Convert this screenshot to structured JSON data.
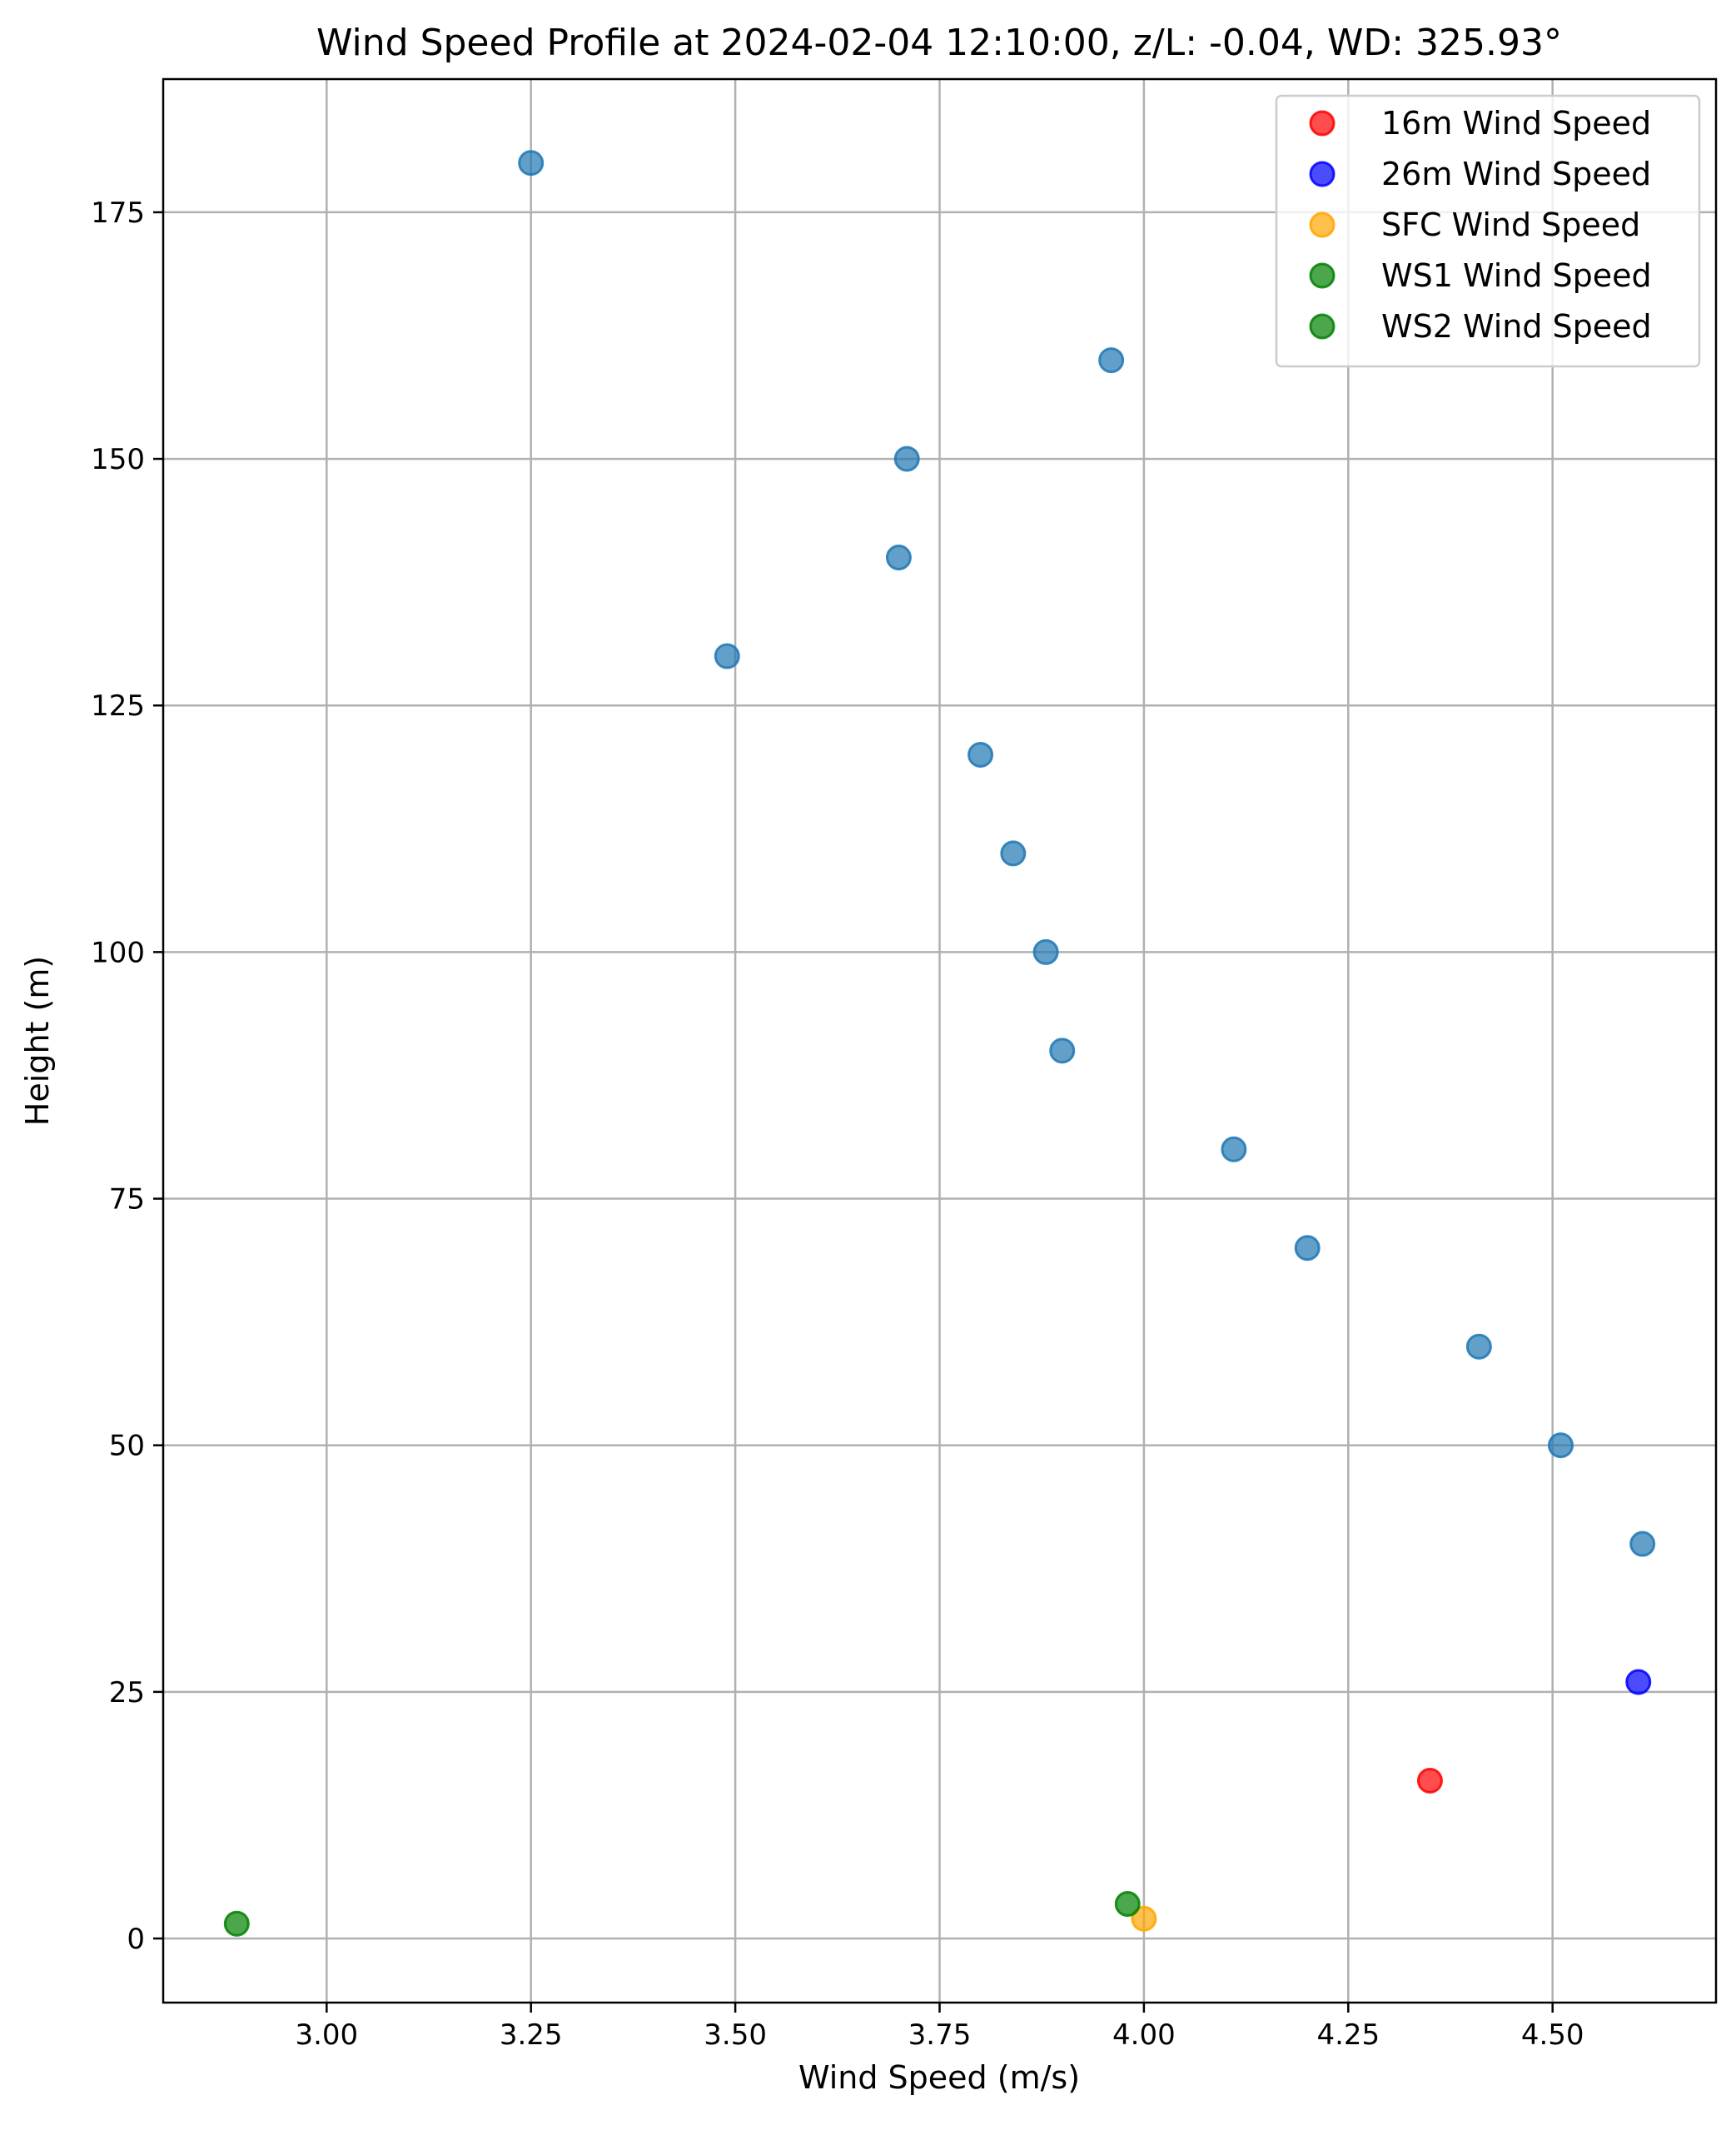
{
  "chart_data": {
    "type": "scatter",
    "title": "Wind Speed Profile at 2024-02-04 12:10:00, z/L: -0.04, WD: 325.93°",
    "xlabel": "Wind Speed (m/s)",
    "ylabel": "Height (m)",
    "xlim": [
      2.8,
      4.7
    ],
    "ylim": [
      -6.5,
      188.5
    ],
    "xticks": [
      3.0,
      3.25,
      3.5,
      3.75,
      4.0,
      4.25,
      4.5
    ],
    "xtick_labels": [
      "3.00",
      "3.25",
      "3.50",
      "3.75",
      "4.00",
      "4.25",
      "4.50"
    ],
    "yticks": [
      0,
      25,
      50,
      75,
      100,
      125,
      150,
      175
    ],
    "ytick_labels": [
      "0",
      "25",
      "50",
      "75",
      "100",
      "125",
      "150",
      "175"
    ],
    "grid": true,
    "legend_position": "top-right",
    "series": [
      {
        "color": "#1f77b4",
        "points": [
          {
            "x": 3.25,
            "y": 180
          },
          {
            "x": 3.96,
            "y": 160
          },
          {
            "x": 3.71,
            "y": 150
          },
          {
            "x": 3.7,
            "y": 140
          },
          {
            "x": 3.49,
            "y": 130
          },
          {
            "x": 3.8,
            "y": 120
          },
          {
            "x": 3.84,
            "y": 110
          },
          {
            "x": 3.88,
            "y": 100
          },
          {
            "x": 3.9,
            "y": 90
          },
          {
            "x": 4.11,
            "y": 80
          },
          {
            "x": 4.2,
            "y": 70
          },
          {
            "x": 4.41,
            "y": 60
          },
          {
            "x": 4.51,
            "y": 50
          },
          {
            "x": 4.61,
            "y": 40
          }
        ]
      },
      {
        "name": "16m Wind Speed",
        "color": "#ff0000",
        "points": [
          {
            "x": 4.35,
            "y": 16
          }
        ]
      },
      {
        "name": "26m Wind Speed",
        "color": "#0000ff",
        "points": [
          {
            "x": 4.605,
            "y": 26
          }
        ]
      },
      {
        "name": "SFC Wind Speed",
        "color": "#ffa500",
        "points": [
          {
            "x": 4.0,
            "y": 2
          }
        ]
      },
      {
        "name": "WS1 Wind Speed",
        "color": "#008000",
        "points": [
          {
            "x": 2.89,
            "y": 1.5
          }
        ]
      },
      {
        "name": "WS2 Wind Speed",
        "color": "#008000",
        "points": [
          {
            "x": 3.98,
            "y": 3.5
          }
        ]
      }
    ]
  }
}
